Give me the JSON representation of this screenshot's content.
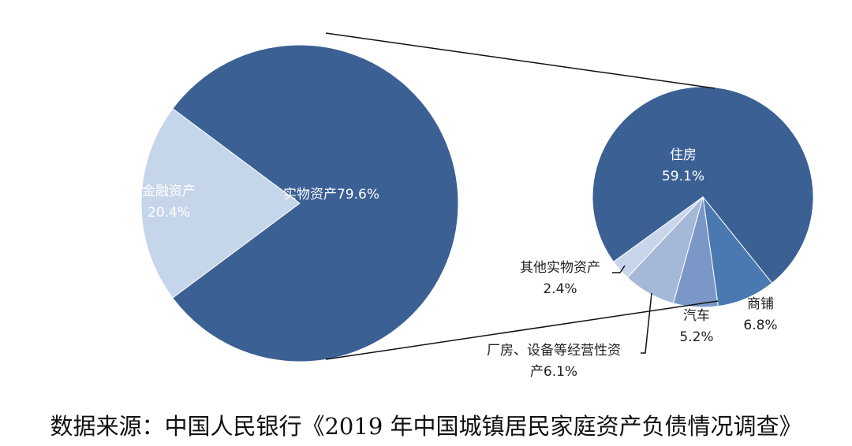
{
  "chart_data": [
    {
      "type": "pie",
      "categories": [
        "金融资产",
        "实物资产"
      ],
      "values": [
        20.4,
        79.6
      ],
      "value_labels": [
        "20.4%",
        "79.6%"
      ],
      "colors": [
        "#c5d5ea",
        "#3b6094"
      ]
    },
    {
      "type": "pie",
      "categories": [
        "住房",
        "商铺",
        "汽车",
        "厂房、设备等经营性资产",
        "其他实物资产"
      ],
      "values": [
        59.1,
        6.8,
        5.2,
        6.1,
        2.4
      ],
      "value_labels": [
        "59.1%",
        "6.8%",
        "5.2%",
        "6.1%",
        "2.4%"
      ],
      "colors": [
        "#3b6094",
        "#4a78b0",
        "#7b97c7",
        "#a5b8d8",
        "#c8d5ea"
      ]
    }
  ],
  "source": "数据来源：中国人民银行《2019 年中国城镇居民家庭资产负债情况调查》"
}
